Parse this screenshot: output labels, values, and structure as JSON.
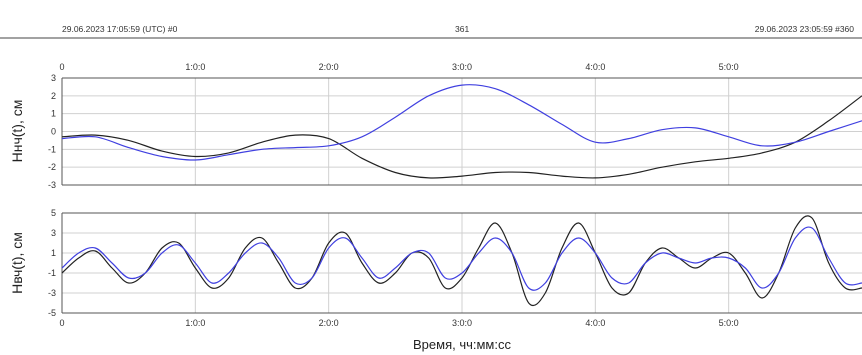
{
  "header": {
    "start_label": "29.06.2023 17:05:59 (UTC)  #0",
    "center_label": "361",
    "end_label": "29.06.2023 23:05:59  #360"
  },
  "chart_data": [
    {
      "type": "line",
      "ylabel": "Hнч(t), см",
      "xlabel": "",
      "x_units": "seconds",
      "xlim": [
        0,
        21600
      ],
      "ylim": [
        -3,
        3
      ],
      "grid": true,
      "x_tick_labels": [
        "0",
        "1:0:0",
        "2:0:0",
        "3:0:0",
        "4:0:0",
        "5:0:0"
      ],
      "x_tick_values": [
        0,
        3600,
        7200,
        10800,
        14400,
        18000
      ],
      "y_ticks": [
        3,
        2,
        1,
        0,
        -1,
        -2,
        -3
      ],
      "series_colors": [
        "#222222",
        "#4040e0"
      ],
      "series": [
        {
          "x": [
            0,
            900,
            1800,
            2700,
            3600,
            4500,
            5400,
            6300,
            7200,
            8100,
            9000,
            9900,
            10800,
            11700,
            12600,
            13500,
            14400,
            15300,
            16200,
            17100,
            18000,
            18900,
            19800,
            20700,
            21600
          ],
          "values": [
            -0.3,
            -0.2,
            -0.5,
            -1.1,
            -1.4,
            -1.2,
            -0.6,
            -0.2,
            -0.4,
            -1.5,
            -2.3,
            -2.6,
            -2.5,
            -2.3,
            -2.3,
            -2.5,
            -2.6,
            -2.4,
            -2.0,
            -1.7,
            -1.5,
            -1.2,
            -0.6,
            0.6,
            2.0
          ]
        },
        {
          "x": [
            0,
            900,
            1800,
            2700,
            3600,
            4500,
            5400,
            6300,
            7200,
            8100,
            9000,
            9900,
            10800,
            11700,
            12600,
            13500,
            14400,
            15300,
            16200,
            17100,
            18000,
            18900,
            19800,
            20700,
            21600
          ],
          "values": [
            -0.4,
            -0.3,
            -0.9,
            -1.4,
            -1.6,
            -1.3,
            -1.0,
            -0.9,
            -0.8,
            -0.3,
            0.8,
            2.0,
            2.6,
            2.4,
            1.5,
            0.4,
            -0.6,
            -0.4,
            0.1,
            0.2,
            -0.3,
            -0.8,
            -0.6,
            0.0,
            0.6
          ]
        }
      ]
    },
    {
      "type": "line",
      "ylabel": "Hвч(t), см",
      "xlabel": "Время, чч:мм:сс",
      "x_units": "seconds",
      "xlim": [
        0,
        21600
      ],
      "ylim": [
        -5,
        5
      ],
      "grid": true,
      "x_tick_labels": [
        "0",
        "1:0:0",
        "2:0:0",
        "3:0:0",
        "4:0:0",
        "5:0:0"
      ],
      "x_tick_values": [
        0,
        3600,
        7200,
        10800,
        14400,
        18000
      ],
      "y_ticks": [
        5,
        3,
        1,
        -1,
        -3,
        -5
      ],
      "series_colors": [
        "#222222",
        "#4040e0"
      ],
      "series": [
        {
          "x": [
            0,
            450,
            900,
            1350,
            1800,
            2250,
            2700,
            3150,
            3600,
            4050,
            4500,
            4950,
            5400,
            5850,
            6300,
            6750,
            7200,
            7650,
            8100,
            8550,
            9000,
            9450,
            9900,
            10350,
            10800,
            11250,
            11700,
            12150,
            12600,
            13050,
            13500,
            13950,
            14400,
            14850,
            15300,
            15750,
            16200,
            16650,
            17100,
            17550,
            18000,
            18450,
            18900,
            19350,
            19800,
            20250,
            20700,
            21150,
            21600
          ],
          "values": [
            -1.0,
            0.5,
            1.2,
            -0.5,
            -2.0,
            -1.0,
            1.5,
            2.0,
            -0.5,
            -2.5,
            -1.5,
            1.5,
            2.5,
            0.0,
            -2.5,
            -1.5,
            2.0,
            3.0,
            0.0,
            -2.0,
            -1.0,
            1.0,
            0.5,
            -2.5,
            -1.5,
            1.5,
            4.0,
            1.0,
            -4.0,
            -3.0,
            1.5,
            4.0,
            1.0,
            -2.5,
            -3.0,
            0.0,
            1.5,
            0.5,
            -0.5,
            0.5,
            1.0,
            -1.0,
            -3.5,
            -1.0,
            3.5,
            4.5,
            0.0,
            -2.5,
            -2.5
          ]
        },
        {
          "x": [
            0,
            450,
            900,
            1350,
            1800,
            2250,
            2700,
            3150,
            3600,
            4050,
            4500,
            4950,
            5400,
            5850,
            6300,
            6750,
            7200,
            7650,
            8100,
            8550,
            9000,
            9450,
            9900,
            10350,
            10800,
            11250,
            11700,
            12150,
            12600,
            13050,
            13500,
            13950,
            14400,
            14850,
            15300,
            15750,
            16200,
            16650,
            17100,
            17550,
            18000,
            18450,
            18900,
            19350,
            19800,
            20250,
            20700,
            21150,
            21600
          ],
          "values": [
            -0.5,
            1.0,
            1.5,
            0.0,
            -1.5,
            -1.0,
            1.0,
            1.8,
            0.0,
            -2.0,
            -1.0,
            1.0,
            2.0,
            0.5,
            -2.0,
            -1.5,
            1.5,
            2.5,
            0.5,
            -1.5,
            -0.5,
            1.0,
            1.0,
            -1.5,
            -1.0,
            1.0,
            2.5,
            1.0,
            -2.5,
            -2.0,
            1.0,
            2.5,
            1.0,
            -1.5,
            -2.0,
            0.0,
            1.0,
            0.5,
            0.0,
            0.5,
            0.5,
            -0.5,
            -2.5,
            -1.0,
            2.5,
            3.5,
            0.5,
            -2.0,
            -2.0
          ]
        }
      ]
    }
  ]
}
